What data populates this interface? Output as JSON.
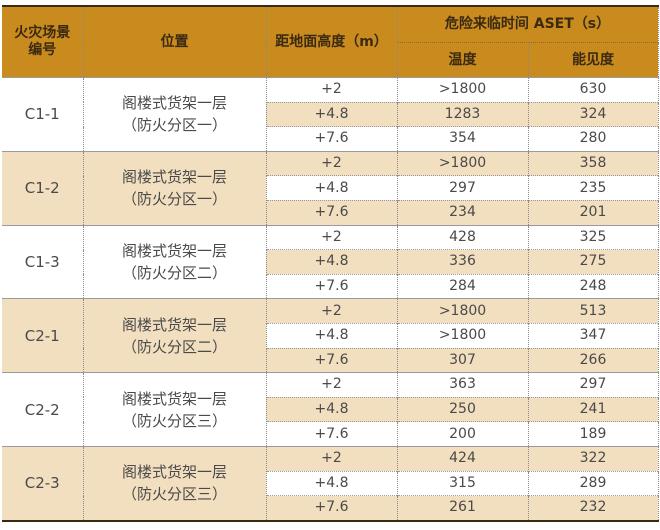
{
  "table": {
    "headers": {
      "scenario": "火灾场景\n编号",
      "scenario_line1": "火灾场景",
      "scenario_line2": "编号",
      "location": "位置",
      "height": "距地面高度（m）",
      "aset": "危险来临时间 ASET（s）",
      "temperature": "温度",
      "visibility": "能见度"
    },
    "groups": [
      {
        "id": "C1-1",
        "location_line1": "阁楼式货架一层",
        "location_line2": "（防火分区一）",
        "rows": [
          {
            "height": "+2",
            "temperature": ">1800",
            "visibility": "630"
          },
          {
            "height": "+4.8",
            "temperature": "1283",
            "visibility": "324"
          },
          {
            "height": "+7.6",
            "temperature": "354",
            "visibility": "280"
          }
        ]
      },
      {
        "id": "C1-2",
        "location_line1": "阁楼式货架一层",
        "location_line2": "（防火分区一）",
        "rows": [
          {
            "height": "+2",
            "temperature": ">1800",
            "visibility": "358"
          },
          {
            "height": "+4.8",
            "temperature": "297",
            "visibility": "235"
          },
          {
            "height": "+7.6",
            "temperature": "234",
            "visibility": "201"
          }
        ]
      },
      {
        "id": "C1-3",
        "location_line1": "阁楼式货架一层",
        "location_line2": "（防火分区二）",
        "rows": [
          {
            "height": "+2",
            "temperature": "428",
            "visibility": "325"
          },
          {
            "height": "+4.8",
            "temperature": "336",
            "visibility": "275"
          },
          {
            "height": "+7.6",
            "temperature": "284",
            "visibility": "248"
          }
        ]
      },
      {
        "id": "C2-1",
        "location_line1": "阁楼式货架一层",
        "location_line2": "（防火分区二）",
        "rows": [
          {
            "height": "+2",
            "temperature": ">1800",
            "visibility": "513"
          },
          {
            "height": "+4.8",
            "temperature": ">1800",
            "visibility": "347"
          },
          {
            "height": "+7.6",
            "temperature": "307",
            "visibility": "266"
          }
        ]
      },
      {
        "id": "C2-2",
        "location_line1": "阁楼式货架一层",
        "location_line2": "（防火分区三）",
        "rows": [
          {
            "height": "+2",
            "temperature": "363",
            "visibility": "297"
          },
          {
            "height": "+4.8",
            "temperature": "250",
            "visibility": "241"
          },
          {
            "height": "+7.6",
            "temperature": "200",
            "visibility": "189"
          }
        ]
      },
      {
        "id": "C2-3",
        "location_line1": "阁楼式货架一层",
        "location_line2": "（防火分区三）",
        "rows": [
          {
            "height": "+2",
            "temperature": "424",
            "visibility": "322"
          },
          {
            "height": "+4.8",
            "temperature": "315",
            "visibility": "289"
          },
          {
            "height": "+7.6",
            "temperature": "261",
            "visibility": "232"
          }
        ]
      }
    ]
  },
  "colors": {
    "header_bg": "#c98b1e",
    "header_text": "#3b2a12",
    "tint_row": "#f2dfc0",
    "white_row": "#ffffff",
    "body_text": "#4a4a4a"
  }
}
